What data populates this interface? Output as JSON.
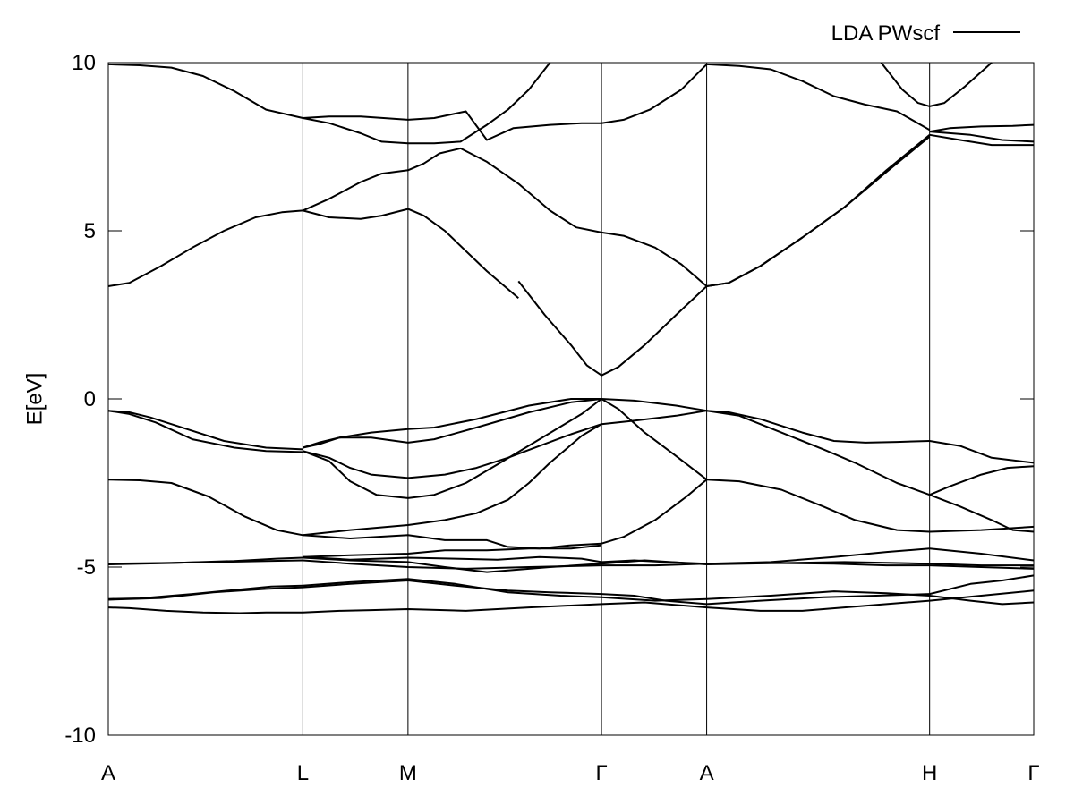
{
  "chart_data": {
    "type": "line",
    "title": "",
    "xlabel": "",
    "ylabel": "E[eV]",
    "ylim": [
      -10,
      10
    ],
    "yticks": [
      -10,
      -5,
      0,
      5,
      10
    ],
    "xlim": [
      0,
      8.8
    ],
    "high_symmetry_points": [
      {
        "label": "A",
        "x": 0
      },
      {
        "label": "L",
        "x": 1.85
      },
      {
        "label": "M",
        "x": 2.85
      },
      {
        "label": "Γ",
        "x": 4.69
      },
      {
        "label": "A",
        "x": 5.69
      },
      {
        "label": "H",
        "x": 7.81
      },
      {
        "label": "Γ",
        "x": 8.8
      }
    ],
    "grid": "vertical lines at high-symmetry points",
    "legend": {
      "position": "top-right",
      "entries": [
        {
          "name": "LDA PWscf",
          "color": "#000000"
        }
      ]
    },
    "series_color": "#000000",
    "bands": [
      {
        "x": [
          0,
          0.2,
          0.55,
          0.9,
          1.25,
          1.5,
          1.85
        ],
        "y": [
          -6.2,
          -6.22,
          -6.3,
          -6.35,
          -6.37,
          -6.35,
          -6.35
        ]
      },
      {
        "x": [
          1.85,
          2.2,
          2.5,
          2.85,
          3.4,
          4.0,
          4.69
        ],
        "y": [
          -6.35,
          -6.3,
          -6.28,
          -6.25,
          -6.3,
          -6.2,
          -6.1
        ]
      },
      {
        "x": [
          4.69,
          5.1,
          5.69
        ],
        "y": [
          -6.1,
          -6.05,
          -6.2
        ]
      },
      {
        "x": [
          5.69,
          6.2,
          6.6,
          7.2,
          7.81
        ],
        "y": [
          -6.2,
          -6.3,
          -6.3,
          -6.15,
          -6.0
        ]
      },
      {
        "x": [
          7.81,
          8.3,
          8.8
        ],
        "y": [
          -6.0,
          -5.85,
          -5.7
        ]
      },
      {
        "x": [
          0,
          0.3,
          0.8,
          1.2,
          1.55,
          1.85
        ],
        "y": [
          -5.95,
          -5.93,
          -5.8,
          -5.68,
          -5.58,
          -5.55
        ]
      },
      {
        "x": [
          1.85,
          2.3,
          2.85,
          3.3,
          3.8,
          4.3,
          4.69
        ],
        "y": [
          -5.55,
          -5.45,
          -5.35,
          -5.5,
          -5.75,
          -5.85,
          -5.9
        ]
      },
      {
        "x": [
          4.69,
          5.2,
          5.69
        ],
        "y": [
          -5.9,
          -6.0,
          -5.95
        ]
      },
      {
        "x": [
          5.69,
          6.3,
          6.9,
          7.4,
          7.81
        ],
        "y": [
          -5.95,
          -5.85,
          -5.72,
          -5.78,
          -5.85
        ]
      },
      {
        "x": [
          7.81,
          8.2,
          8.5,
          8.8
        ],
        "y": [
          -5.85,
          -6.0,
          -6.1,
          -6.05
        ]
      },
      {
        "x": [
          0,
          0.5,
          1.0,
          1.5,
          1.85
        ],
        "y": [
          -5.97,
          -5.92,
          -5.75,
          -5.65,
          -5.6
        ]
      },
      {
        "x": [
          1.85,
          2.3,
          2.85,
          3.3,
          3.8,
          4.2,
          4.69
        ],
        "y": [
          -5.6,
          -5.5,
          -5.4,
          -5.55,
          -5.7,
          -5.75,
          -5.8
        ]
      },
      {
        "x": [
          4.69,
          5.0,
          5.3,
          5.69
        ],
        "y": [
          -5.8,
          -5.85,
          -6.0,
          -6.1
        ]
      },
      {
        "x": [
          5.69,
          6.2,
          6.8,
          7.3,
          7.81
        ],
        "y": [
          -6.1,
          -6.0,
          -5.9,
          -5.85,
          -5.8
        ]
      },
      {
        "x": [
          7.81,
          8.2,
          8.5,
          8.8
        ],
        "y": [
          -5.8,
          -5.5,
          -5.4,
          -5.25
        ]
      },
      {
        "x": [
          0,
          0.5,
          1.0,
          1.5,
          1.85
        ],
        "y": [
          -4.9,
          -4.88,
          -4.85,
          -4.82,
          -4.8
        ]
      },
      {
        "x": [
          1.85,
          2.3,
          2.85,
          3.4,
          4.0,
          4.69
        ],
        "y": [
          -4.8,
          -4.9,
          -5.0,
          -5.05,
          -5.0,
          -4.95
        ]
      },
      {
        "x": [
          4.69,
          5.2,
          5.69
        ],
        "y": [
          -4.95,
          -4.95,
          -4.9
        ]
      },
      {
        "x": [
          5.69,
          6.3,
          6.9,
          7.4,
          7.81
        ],
        "y": [
          -4.9,
          -4.88,
          -4.9,
          -4.95,
          -4.95
        ]
      },
      {
        "x": [
          7.81,
          8.3,
          8.8
        ],
        "y": [
          -4.95,
          -5.0,
          -5.05
        ]
      },
      {
        "x": [
          0,
          0.6,
          1.2,
          1.6,
          1.85
        ],
        "y": [
          -4.92,
          -4.88,
          -4.82,
          -4.75,
          -4.72
        ]
      },
      {
        "x": [
          1.85,
          2.3,
          2.85,
          3.2,
          3.6,
          4.2,
          4.69
        ],
        "y": [
          -4.72,
          -4.8,
          -4.85,
          -5.0,
          -5.15,
          -5.0,
          -4.9
        ]
      },
      {
        "x": [
          4.69,
          5.1,
          5.69
        ],
        "y": [
          -4.9,
          -4.8,
          -4.92
        ]
      },
      {
        "x": [
          5.69,
          6.4,
          7.0,
          7.81
        ],
        "y": [
          -4.92,
          -4.88,
          -4.85,
          -4.9
        ]
      },
      {
        "x": [
          7.81,
          8.3,
          8.8
        ],
        "y": [
          -4.9,
          -4.95,
          -4.95
        ]
      },
      {
        "x": [
          1.85,
          2.3,
          2.85,
          3.3,
          3.7,
          4.1,
          4.5,
          4.69
        ],
        "y": [
          -4.7,
          -4.78,
          -4.72,
          -4.75,
          -4.78,
          -4.7,
          -4.75,
          -4.85
        ]
      },
      {
        "x": [
          4.69,
          5.0,
          5.3,
          5.69
        ],
        "y": [
          -4.85,
          -4.8,
          -4.85,
          -4.9
        ]
      },
      {
        "x": [
          5.69,
          6.3,
          6.9,
          7.4,
          7.81
        ],
        "y": [
          -4.9,
          -4.85,
          -4.7,
          -4.55,
          -4.45
        ]
      },
      {
        "x": [
          7.81,
          8.3,
          8.8
        ],
        "y": [
          -4.45,
          -4.6,
          -4.8
        ]
      },
      {
        "x": [
          1.85,
          2.3,
          2.85,
          3.2,
          3.6,
          4.0,
          4.4,
          4.69
        ],
        "y": [
          -4.7,
          -4.65,
          -4.6,
          -4.5,
          -4.5,
          -4.45,
          -4.45,
          -4.35
        ]
      },
      {
        "x": [
          0,
          0.3,
          0.6,
          0.95,
          1.3,
          1.6,
          1.85
        ],
        "y": [
          -2.4,
          -2.42,
          -2.5,
          -2.9,
          -3.5,
          -3.9,
          -4.05
        ]
      },
      {
        "x": [
          1.85,
          2.3,
          2.85,
          3.2,
          3.5,
          3.8,
          4.0,
          4.2,
          4.5,
          4.69
        ],
        "y": [
          -4.05,
          -3.9,
          -3.75,
          -3.6,
          -3.4,
          -3.0,
          -2.5,
          -1.9,
          -1.1,
          -0.75
        ]
      },
      {
        "x": [
          1.85,
          2.3,
          2.85,
          3.2,
          3.6,
          3.8,
          4.1,
          4.4,
          4.69
        ],
        "y": [
          -4.05,
          -4.15,
          -4.05,
          -4.2,
          -4.2,
          -4.4,
          -4.45,
          -4.35,
          -4.3
        ]
      },
      {
        "x": [
          4.69,
          4.9,
          5.2,
          5.5,
          5.69
        ],
        "y": [
          -4.3,
          -4.1,
          -3.6,
          -2.9,
          -2.4
        ]
      },
      {
        "x": [
          0,
          0.2,
          0.4,
          0.75,
          1.1,
          1.5,
          1.85
        ],
        "y": [
          -0.35,
          -0.4,
          -0.55,
          -0.9,
          -1.25,
          -1.45,
          -1.5
        ]
      },
      {
        "x": [
          0,
          0.2,
          0.45,
          0.8,
          1.2,
          1.5,
          1.85
        ],
        "y": [
          -0.35,
          -0.45,
          -0.7,
          -1.2,
          -1.45,
          -1.55,
          -1.58
        ]
      },
      {
        "x": [
          1.85,
          2.1,
          2.3,
          2.5,
          2.85,
          3.2,
          3.5,
          3.8,
          4.1,
          4.4,
          4.69
        ],
        "y": [
          -1.55,
          -1.75,
          -2.05,
          -2.25,
          -2.35,
          -2.25,
          -2.05,
          -1.75,
          -1.4,
          -1.05,
          -0.75
        ]
      },
      {
        "x": [
          1.85,
          2.1,
          2.3,
          2.55,
          2.85,
          3.1,
          3.4,
          3.7,
          4.1,
          4.5,
          4.69
        ],
        "y": [
          -1.55,
          -1.85,
          -2.45,
          -2.85,
          -2.95,
          -2.85,
          -2.5,
          -1.95,
          -1.2,
          -0.45,
          0.0
        ]
      },
      {
        "x": [
          1.85,
          2.0,
          2.2,
          2.5,
          2.85,
          3.1,
          3.5,
          4.0,
          4.4,
          4.69
        ],
        "y": [
          -1.45,
          -1.35,
          -1.15,
          -1.15,
          -1.3,
          -1.2,
          -0.85,
          -0.4,
          -0.1,
          0.0
        ]
      },
      {
        "x": [
          1.85,
          2.0,
          2.2,
          2.5,
          2.85,
          3.1,
          3.5,
          4.0,
          4.4,
          4.69
        ],
        "y": [
          -1.45,
          -1.3,
          -1.15,
          -1.0,
          -0.9,
          -0.85,
          -0.6,
          -0.2,
          0.0,
          0.0
        ]
      },
      {
        "x": [
          4.69,
          5.0,
          5.4,
          5.69
        ],
        "y": [
          0.0,
          -0.05,
          -0.2,
          -0.35
        ]
      },
      {
        "x": [
          4.69,
          5.0,
          5.4,
          5.69
        ],
        "y": [
          -0.75,
          -0.65,
          -0.5,
          -0.35
        ]
      },
      {
        "x": [
          4.69,
          4.85,
          5.1,
          5.4,
          5.69
        ],
        "y": [
          0.0,
          -0.3,
          -1.0,
          -1.7,
          -2.4
        ]
      },
      {
        "x": [
          5.69,
          6.0,
          6.4,
          6.8,
          7.1,
          7.5,
          7.81
        ],
        "y": [
          -0.35,
          -0.5,
          -1.0,
          -1.5,
          -1.9,
          -2.5,
          -2.85
        ]
      },
      {
        "x": [
          5.69,
          5.9,
          6.2,
          6.6,
          6.9,
          7.2,
          7.5,
          7.81
        ],
        "y": [
          -0.35,
          -0.4,
          -0.6,
          -1.0,
          -1.25,
          -1.3,
          -1.28,
          -1.25
        ]
      },
      {
        "x": [
          5.69,
          6.0,
          6.4,
          6.8,
          7.1,
          7.5,
          7.81
        ],
        "y": [
          -2.4,
          -2.45,
          -2.7,
          -3.2,
          -3.6,
          -3.9,
          -3.95
        ]
      },
      {
        "x": [
          7.81,
          8.1,
          8.4,
          8.8
        ],
        "y": [
          -1.25,
          -1.4,
          -1.75,
          -1.9
        ]
      },
      {
        "x": [
          7.81,
          8.0,
          8.3,
          8.55,
          8.8
        ],
        "y": [
          -2.85,
          -2.6,
          -2.25,
          -2.05,
          -2.0
        ]
      },
      {
        "x": [
          7.81,
          8.1,
          8.4,
          8.6,
          8.8
        ],
        "y": [
          -2.85,
          -3.2,
          -3.6,
          -3.9,
          -3.95
        ]
      },
      {
        "x": [
          7.81,
          8.3,
          8.8
        ],
        "y": [
          -3.95,
          -3.9,
          -3.8
        ]
      },
      {
        "x": [
          4.69,
          4.85,
          5.1,
          5.4,
          5.69
        ],
        "y": [
          0.7,
          0.95,
          1.6,
          2.5,
          3.35
        ]
      },
      {
        "x": [
          3.9,
          4.15,
          4.4,
          4.55,
          4.69
        ],
        "y": [
          3.5,
          2.5,
          1.6,
          1.0,
          0.7
        ]
      },
      {
        "x": [
          2.85,
          3.0,
          3.2,
          3.4,
          3.6,
          3.9
        ],
        "y": [
          5.65,
          5.45,
          5.0,
          4.4,
          3.8,
          3.0
        ]
      },
      {
        "x": [
          1.85,
          2.1,
          2.4,
          2.6,
          2.85
        ],
        "y": [
          5.6,
          5.4,
          5.35,
          5.45,
          5.65
        ]
      },
      {
        "x": [
          0,
          0.2,
          0.5,
          0.8,
          1.1,
          1.4,
          1.65,
          1.85
        ],
        "y": [
          3.35,
          3.45,
          3.95,
          4.5,
          5.0,
          5.4,
          5.55,
          5.6
        ]
      },
      {
        "x": [
          1.85,
          2.1,
          2.4,
          2.6,
          2.85,
          3.0,
          3.15,
          3.35,
          3.6,
          3.9,
          4.2,
          4.45,
          4.69
        ],
        "y": [
          5.6,
          5.95,
          6.45,
          6.7,
          6.8,
          7.0,
          7.3,
          7.45,
          7.05,
          6.4,
          5.6,
          5.1,
          4.95
        ]
      },
      {
        "x": [
          4.69,
          4.9,
          5.2,
          5.45,
          5.69
        ],
        "y": [
          4.95,
          4.85,
          4.5,
          4.0,
          3.35
        ]
      },
      {
        "x": [
          5.69,
          5.9,
          6.2,
          6.6,
          7.0,
          7.4,
          7.81
        ],
        "y": [
          3.35,
          3.45,
          3.95,
          4.8,
          5.7,
          6.8,
          7.85
        ]
      },
      {
        "x": [
          5.69,
          5.9,
          6.2,
          6.6,
          7.0,
          7.4,
          7.81
        ],
        "y": [
          3.35,
          3.45,
          3.95,
          4.8,
          5.7,
          6.75,
          7.8
        ]
      },
      {
        "x": [
          7.81,
          8.1,
          8.4,
          8.8
        ],
        "y": [
          7.85,
          7.7,
          7.55,
          7.55
        ]
      },
      {
        "x": [
          7.81,
          8.2,
          8.5,
          8.8
        ],
        "y": [
          7.95,
          7.85,
          7.7,
          7.65
        ]
      },
      {
        "x": [
          7.81,
          8.0,
          8.3,
          8.6,
          8.8
        ],
        "y": [
          7.95,
          8.05,
          8.1,
          8.12,
          8.15
        ]
      },
      {
        "x": [
          0,
          0.3,
          0.6,
          0.9,
          1.2,
          1.5,
          1.85
        ],
        "y": [
          9.95,
          9.92,
          9.85,
          9.6,
          9.15,
          8.6,
          8.35
        ]
      },
      {
        "x": [
          1.85,
          2.1,
          2.4,
          2.85,
          3.1,
          3.4,
          3.6,
          3.85,
          4.2,
          4.5,
          4.69
        ],
        "y": [
          8.35,
          8.4,
          8.4,
          8.3,
          8.35,
          8.55,
          7.7,
          8.05,
          8.15,
          8.2,
          8.2
        ]
      },
      {
        "x": [
          1.85,
          2.1,
          2.4,
          2.6,
          2.85,
          3.1,
          3.35,
          3.6,
          3.8,
          4.0,
          4.2
        ],
        "y": [
          8.35,
          8.2,
          7.9,
          7.65,
          7.6,
          7.6,
          7.65,
          8.15,
          8.6,
          9.2,
          10.0
        ]
      },
      {
        "x": [
          4.69,
          4.9,
          5.15,
          5.45,
          5.69
        ],
        "y": [
          8.2,
          8.3,
          8.6,
          9.2,
          9.95
        ]
      },
      {
        "x": [
          5.69,
          6.0,
          6.3,
          6.6,
          6.9,
          7.2,
          7.5,
          7.81
        ],
        "y": [
          9.95,
          9.9,
          9.8,
          9.45,
          9.0,
          8.75,
          8.55,
          8.0
        ]
      },
      {
        "x": [
          7.35,
          7.55,
          7.7,
          7.81,
          7.95,
          8.15,
          8.4
        ],
        "y": [
          10.0,
          9.2,
          8.8,
          8.7,
          8.8,
          9.3,
          10.0
        ]
      }
    ]
  }
}
